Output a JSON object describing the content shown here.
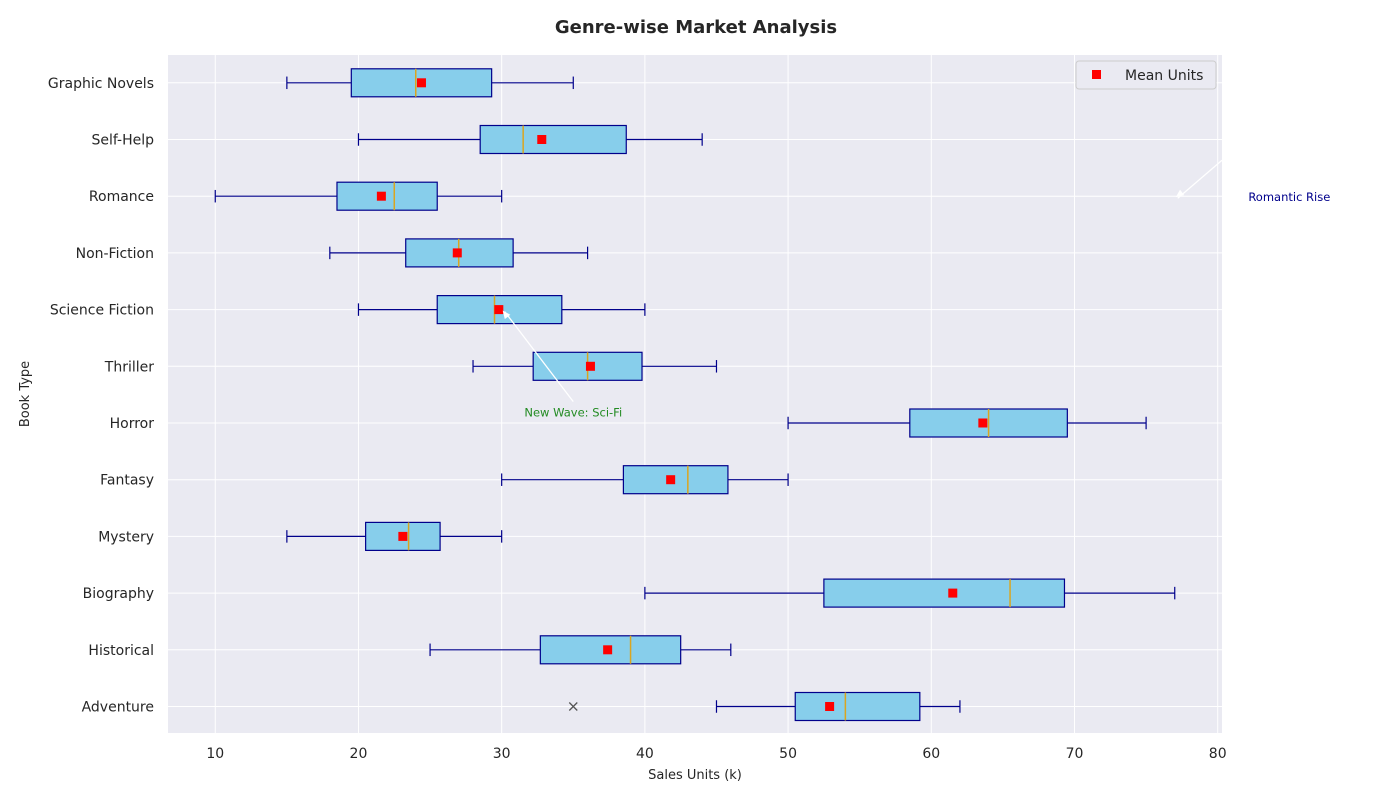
{
  "chart_data": {
    "type": "boxplot",
    "orientation": "horizontal",
    "title": "Genre-wise Market Analysis",
    "xlabel": "Sales Units (k)",
    "ylabel": "Book Type",
    "xlim": [
      6.7,
      80.3
    ],
    "xticks": [
      10,
      20,
      30,
      40,
      50,
      60,
      70,
      80
    ],
    "grid": true,
    "legend": {
      "position": "upper-right",
      "entries": [
        {
          "label": "Mean Units",
          "marker": "square",
          "color": "#ff0000"
        }
      ]
    },
    "colors": {
      "plot_bg": "#eaeaf2",
      "box_fill": "#87ceeb",
      "box_edge": "#00008b",
      "whisker": "#00008b",
      "median": "#daa520",
      "mean": "#ff0000",
      "outlier": "#555555"
    },
    "categories": [
      "Adventure",
      "Historical",
      "Biography",
      "Mystery",
      "Fantasy",
      "Horror",
      "Thriller",
      "Science Fiction",
      "Non-Fiction",
      "Romance",
      "Self-Help",
      "Graphic Novels"
    ],
    "boxes": [
      {
        "label": "Adventure",
        "min": 45,
        "q1": 50.5,
        "median": 54,
        "q3": 59.2,
        "max": 62,
        "mean": 52.9,
        "outliers": [
          35
        ]
      },
      {
        "label": "Historical",
        "min": 25,
        "q1": 32.7,
        "median": 39,
        "q3": 42.5,
        "max": 46,
        "mean": 37.4,
        "outliers": []
      },
      {
        "label": "Biography",
        "min": 40,
        "q1": 52.5,
        "median": 65.5,
        "q3": 69.3,
        "max": 77,
        "mean": 61.5,
        "outliers": []
      },
      {
        "label": "Mystery",
        "min": 15,
        "q1": 20.5,
        "median": 23.5,
        "q3": 25.7,
        "max": 30,
        "mean": 23.1,
        "outliers": []
      },
      {
        "label": "Fantasy",
        "min": 30,
        "q1": 38.5,
        "median": 43,
        "q3": 45.8,
        "max": 50,
        "mean": 41.8,
        "outliers": []
      },
      {
        "label": "Horror",
        "min": 50,
        "q1": 58.5,
        "median": 64,
        "q3": 69.5,
        "max": 75,
        "mean": 63.6,
        "outliers": []
      },
      {
        "label": "Thriller",
        "min": 28,
        "q1": 32.2,
        "median": 36,
        "q3": 39.8,
        "max": 45,
        "mean": 36.2,
        "outliers": []
      },
      {
        "label": "Science Fiction",
        "min": 20,
        "q1": 25.5,
        "median": 29.5,
        "q3": 34.2,
        "max": 40,
        "mean": 29.8,
        "outliers": []
      },
      {
        "label": "Non-Fiction",
        "min": 18,
        "q1": 23.3,
        "median": 27,
        "q3": 30.8,
        "max": 36,
        "mean": 26.9,
        "outliers": []
      },
      {
        "label": "Romance",
        "min": 10,
        "q1": 18.5,
        "median": 22.5,
        "q3": 25.5,
        "max": 30,
        "mean": 21.6,
        "outliers": []
      },
      {
        "label": "Self-Help",
        "min": 20,
        "q1": 28.5,
        "median": 31.5,
        "q3": 38.7,
        "max": 44,
        "mean": 32.8,
        "outliers": []
      },
      {
        "label": "Graphic Novels",
        "min": 15,
        "q1": 19.5,
        "median": 24,
        "q3": 29.3,
        "max": 35,
        "mean": 24.4,
        "outliers": []
      }
    ],
    "annotations": [
      {
        "text": "New Wave: Sci-Fi",
        "color": "#228b22",
        "xy": [
          30,
          "Science Fiction"
        ],
        "xytext": [
          35,
          5.2
        ]
      },
      {
        "text": "Romantic Rise",
        "color": "#00008b",
        "xy": [
          77,
          "Romance"
        ],
        "xytext": [
          85,
          9.0
        ]
      }
    ]
  }
}
